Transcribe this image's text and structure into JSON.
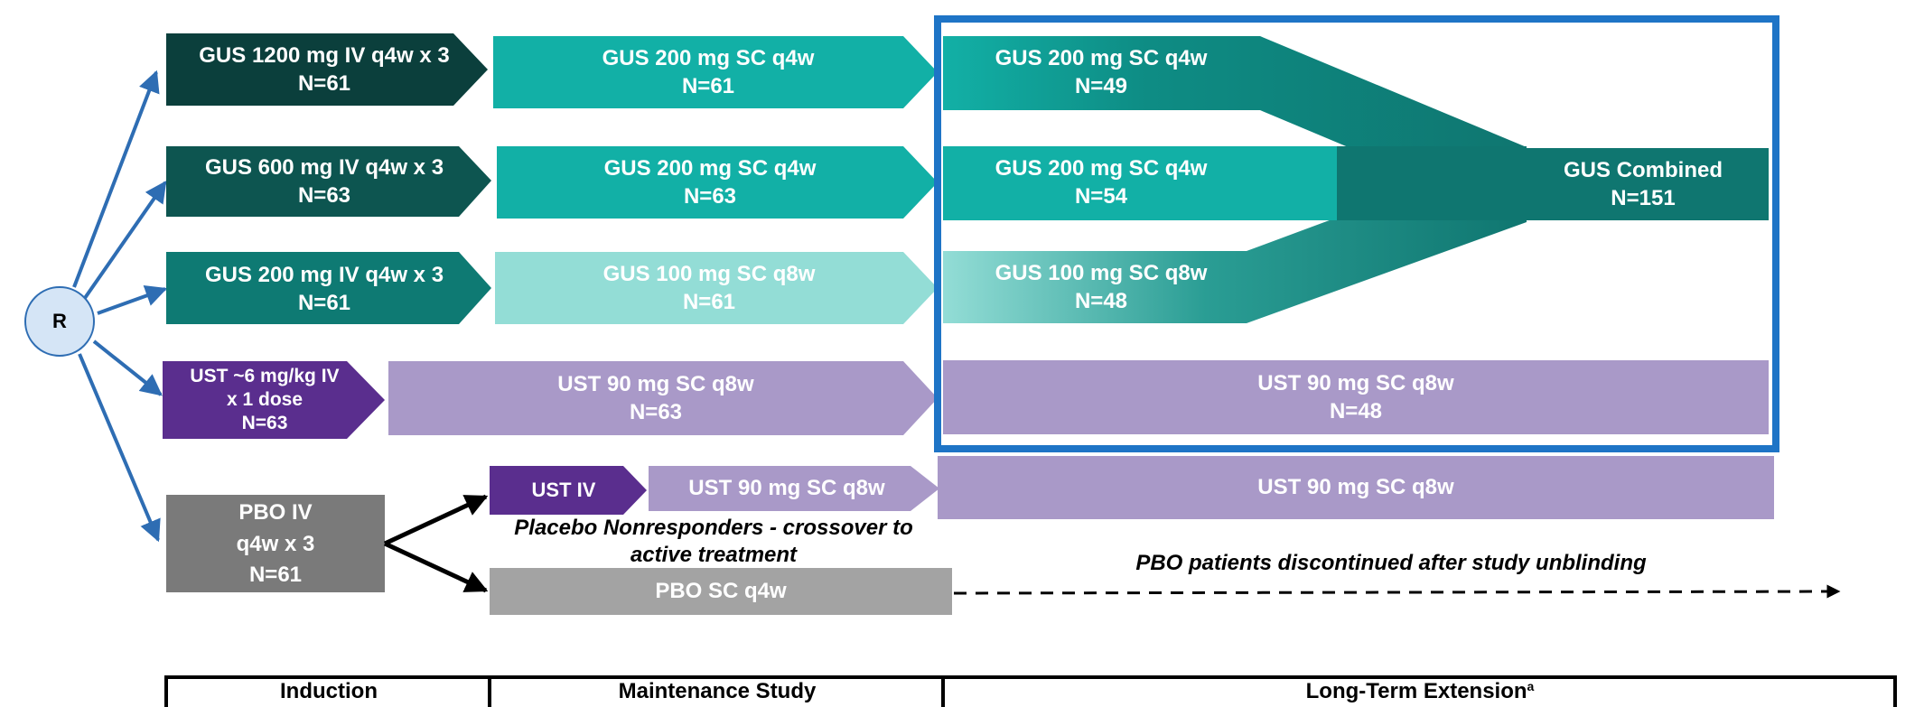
{
  "colors": {
    "gus_dark": "#0b3f3c",
    "gus_dark2": "#0d5550",
    "gus_mid": "#0e7a73",
    "teal": "#12b0a6",
    "teal_light": "#93ddd6",
    "gus_combined": "#0f7670",
    "ust_dark": "#5a2e8e",
    "ust_light": "#a999c8",
    "pbo_dark": "#7a7a7a",
    "pbo_light": "#a3a3a3",
    "arrow_blue": "#2e6db3",
    "box_blue": "#1e74c6",
    "randomize_fill": "#d5e5f6"
  },
  "randomize": {
    "label": "R"
  },
  "induction": [
    {
      "line1": "GUS 1200 mg IV q4w x 3",
      "line2": "N=61"
    },
    {
      "line1": "GUS 600 mg IV q4w x 3",
      "line2": "N=63"
    },
    {
      "line1": "GUS 200 mg IV q4w x 3",
      "line2": "N=61"
    },
    {
      "line1": "UST ~6 mg/kg IV",
      "line2": "x 1 dose",
      "line3": "N=63"
    },
    {
      "line1": "PBO IV",
      "line2": "q4w x 3",
      "line3": "N=61"
    }
  ],
  "maintenance": [
    {
      "line1": "GUS 200 mg SC q4w",
      "line2": "N=61"
    },
    {
      "line1": "GUS 200 mg SC q4w",
      "line2": "N=63"
    },
    {
      "line1": "GUS 100 mg SC q8w",
      "line2": "N=61"
    },
    {
      "line1": "UST 90 mg SC q8w",
      "line2": "N=63"
    }
  ],
  "crossover": {
    "ust_iv": "UST IV",
    "ust_sc": "UST 90 mg SC q8w",
    "note_line1": "Placebo Nonresponders - crossover to",
    "note_line2": "active treatment",
    "pbo_sc": "PBO SC q4w"
  },
  "extension": [
    {
      "line1": "GUS 200 mg SC q4w",
      "line2": "N=49"
    },
    {
      "line1": "GUS 200 mg SC q4w",
      "line2": "N=54"
    },
    {
      "line1": "GUS 100 mg SC q8w",
      "line2": "N=48"
    },
    {
      "line1": "UST 90 mg SC q8w",
      "line2": "N=48"
    }
  ],
  "gus_combined": {
    "line1": "GUS Combined",
    "line2": "N=151"
  },
  "crossover_extension": "UST 90 mg SC q8w",
  "pbo_discontinued_note": "PBO patients discontinued after study unblinding",
  "phases": {
    "induction": "Induction",
    "maintenance": "Maintenance Study",
    "extension": "Long-Term Extension",
    "extension_sup": "a"
  }
}
